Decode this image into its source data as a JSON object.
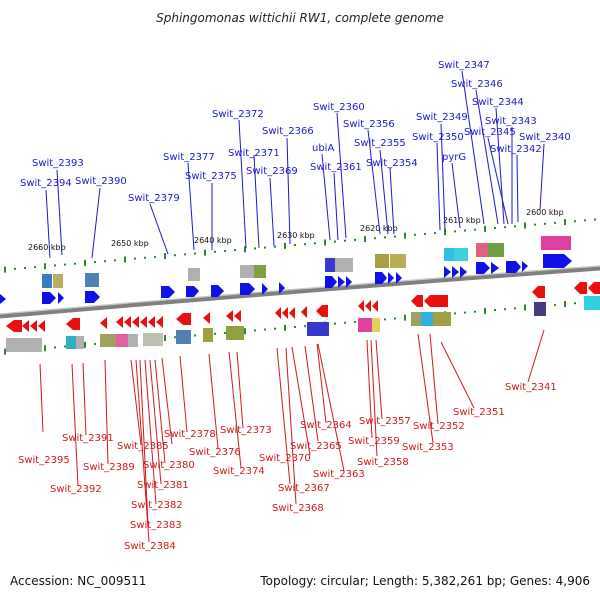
{
  "title": "Sphingomonas wittichii RW1, complete genome",
  "footer": {
    "accession": "Accession: NC_009511",
    "topology": "Topology: circular; Length: 5,382,261 bp; Genes: 4,906"
  },
  "scale_labels": [
    "2660 kbp",
    "2650 kbp",
    "2640 kbp",
    "2630 kbp",
    "2620 kbp",
    "2610 kbp",
    "2600 kbp"
  ],
  "top_labels": [
    "Swit_2347",
    "Swit_2346",
    "Swit_2344",
    "Swit_2343",
    "Swit_2349",
    "Swit_2345",
    "Swit_2360",
    "Swit_2372",
    "Swit_2356",
    "Swit_2340",
    "Swit_2366",
    "Swit_2350",
    "Swit_2355",
    "ubiA",
    "Swit_2342",
    "Swit_2371",
    "Swit_2377",
    "pyrG",
    "Swit_2393",
    "Swit_2354",
    "Swit_2361",
    "Swit_2369",
    "Swit_2375",
    "Swit_2394",
    "Swit_2390",
    "Swit_2379"
  ],
  "bottom_labels": [
    "Swit_2341",
    "Swit_2351",
    "Swit_2357",
    "Swit_2364",
    "Swit_2352",
    "Swit_2373",
    "Swit_2378",
    "Swit_2391",
    "Swit_2359",
    "Swit_2385",
    "Swit_2365",
    "Swit_2376",
    "Swit_2353",
    "Swit_2395",
    "Swit_2370",
    "Swit_2380",
    "Swit_2358",
    "Swit_2389",
    "Swit_2374",
    "Swit_2363",
    "Swit_2381",
    "Swit_2367",
    "Swit_2392",
    "Swit_2382",
    "Swit_2368",
    "Swit_2383",
    "Swit_2384"
  ],
  "colors": {
    "forward_gene": "#1010e8",
    "reverse_gene": "#e81010",
    "forward_label": "#1a1ad0",
    "reverse_label": "#d01a1a",
    "backbone": "#808080",
    "tick": "#2a8a2a"
  }
}
